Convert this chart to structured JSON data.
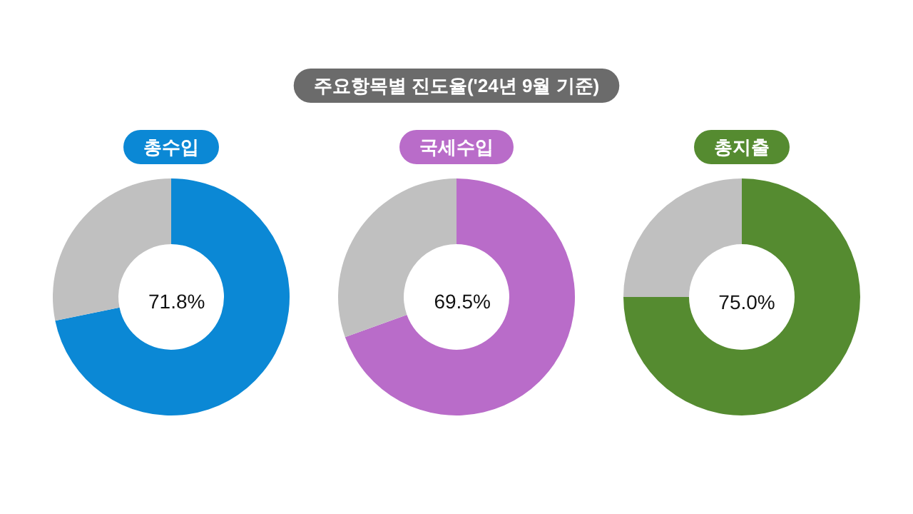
{
  "chart_data": [
    {
      "type": "other",
      "title": "주요항목별 진도율('24년 9월 기준)"
    },
    {
      "type": "donut",
      "title": "총수입",
      "categories": [
        null,
        null
      ],
      "values": [
        71.8,
        28.2
      ],
      "colors": [
        "#0b88d5",
        "#c0c0c0"
      ],
      "value_labels": [
        "71.8%",
        null
      ]
    },
    {
      "type": "donut",
      "title": "국세수입",
      "categories": [
        null,
        null
      ],
      "values": [
        69.5,
        30.5
      ],
      "colors": [
        "#b96cc9",
        "#c0c0c0"
      ],
      "value_labels": [
        "69.5%",
        null
      ]
    },
    {
      "type": "donut",
      "title": "총지출",
      "categories": [
        null,
        null
      ],
      "values": [
        75.0,
        25.0
      ],
      "colors": [
        "#558b30",
        "#c0c0c0"
      ],
      "value_labels": [
        "75.0%",
        null
      ]
    }
  ]
}
